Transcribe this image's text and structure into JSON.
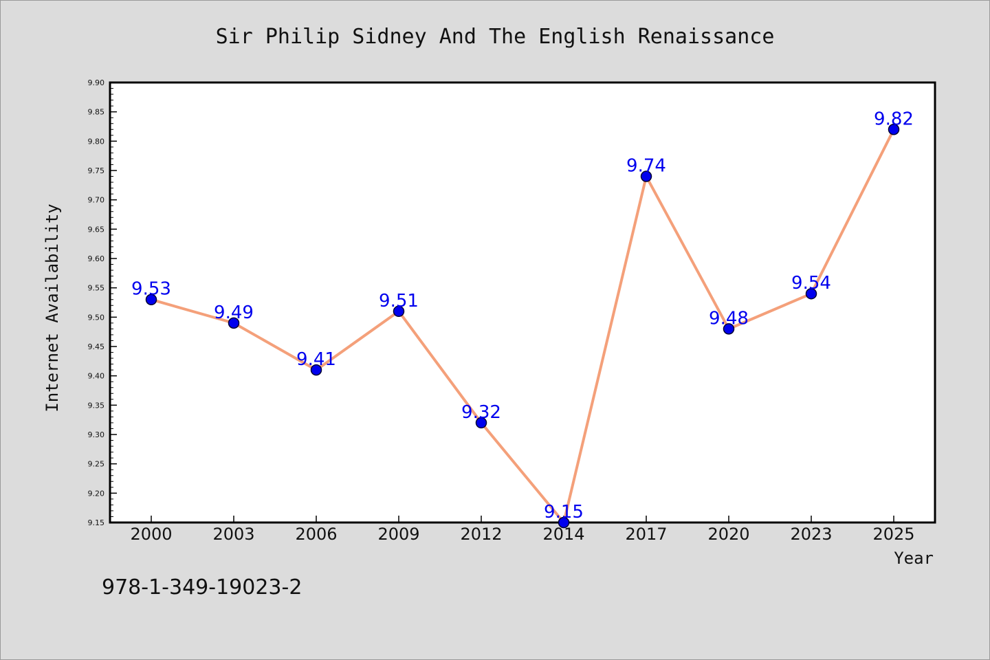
{
  "chart_data": {
    "type": "line",
    "title": "Sir Philip Sidney And The English Renaissance",
    "xlabel": "Year",
    "ylabel": "Internet Availability",
    "categories": [
      "2000",
      "2003",
      "2006",
      "2009",
      "2012",
      "2014",
      "2017",
      "2020",
      "2023",
      "2025"
    ],
    "series": [
      {
        "values": [
          9.53,
          9.49,
          9.41,
          9.51,
          9.32,
          9.15,
          9.74,
          9.48,
          9.54,
          9.82
        ]
      }
    ],
    "data_labels": [
      "9.53",
      "9.49",
      "9.41",
      "9.51",
      "9.32",
      "9.15",
      "9.74",
      "9.48",
      "9.54",
      "9.82"
    ],
    "ylim": [
      9.15,
      9.9
    ],
    "yticks": [
      "9.15",
      "9.20",
      "9.25",
      "9.30",
      "9.35",
      "9.40",
      "9.45",
      "9.50",
      "9.55",
      "9.60",
      "9.65",
      "9.70",
      "9.75",
      "9.80",
      "9.85",
      "9.90"
    ],
    "grid": false,
    "legend": "none",
    "colors": {
      "line": "#f4a07a",
      "marker": "#0000ee",
      "marker_edge": "#000033",
      "label": "#0000ee",
      "plot_bg": "#ffffff",
      "page_bg": "#dcdcdc"
    }
  },
  "footer": {
    "isbn": "978-1-349-19023-2"
  }
}
